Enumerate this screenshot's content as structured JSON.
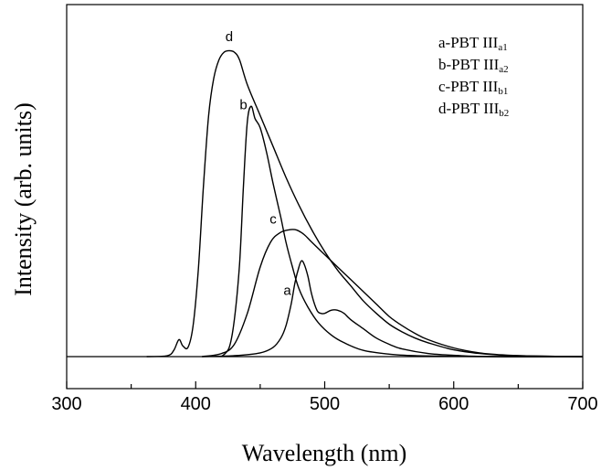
{
  "chart_data": {
    "type": "line",
    "xlabel": "Wavelength (nm)",
    "ylabel": "Intensity (arb. units)",
    "xlim": [
      300,
      700
    ],
    "ylim": [
      -0.1,
      1.05
    ],
    "x_ticks": [
      300,
      400,
      500,
      600,
      700
    ],
    "x_tick_labels": [
      "300",
      "400",
      "500",
      "600",
      "700"
    ],
    "grid": false,
    "legend_placement": "top-right",
    "legend": [
      {
        "prefix": "a-PBT III",
        "sub": "a1"
      },
      {
        "prefix": "b-PBT III",
        "sub": "a2"
      },
      {
        "prefix": "c-PBT III",
        "sub": "b1"
      },
      {
        "prefix": "d-PBT III",
        "sub": "b2"
      }
    ],
    "series": [
      {
        "name": "a",
        "color": "#000000",
        "x": [
          405,
          430,
          450,
          460,
          466,
          470,
          474,
          477,
          480,
          482,
          484,
          487,
          490,
          494,
          497,
          500,
          505,
          510,
          515,
          520,
          530,
          540,
          550,
          560,
          580,
          600,
          620,
          640,
          660,
          700
        ],
        "y": [
          0,
          0.003,
          0.012,
          0.03,
          0.06,
          0.1,
          0.17,
          0.24,
          0.29,
          0.31,
          0.3,
          0.26,
          0.2,
          0.15,
          0.14,
          0.14,
          0.15,
          0.15,
          0.14,
          0.12,
          0.09,
          0.06,
          0.04,
          0.025,
          0.01,
          0.004,
          0.001,
          0,
          0,
          0
        ]
      },
      {
        "name": "b",
        "color": "#000000",
        "x": [
          420,
          426,
          430,
          434,
          437,
          440,
          443,
          446,
          450,
          455,
          460,
          466,
          470,
          475,
          480,
          487,
          495,
          505,
          515,
          530,
          550,
          570,
          600,
          630,
          700
        ],
        "y": [
          0,
          0.03,
          0.12,
          0.3,
          0.55,
          0.76,
          0.81,
          0.77,
          0.74,
          0.66,
          0.56,
          0.45,
          0.37,
          0.29,
          0.22,
          0.16,
          0.11,
          0.07,
          0.045,
          0.02,
          0.008,
          0.003,
          0.001,
          0,
          0
        ]
      },
      {
        "name": "c",
        "color": "#000000",
        "x": [
          405,
          420,
          430,
          440,
          450,
          458,
          465,
          472,
          478,
          484,
          490,
          500,
          510,
          520,
          530,
          540,
          550,
          560,
          570,
          580,
          600,
          620,
          640,
          660,
          700
        ],
        "y": [
          0,
          0.01,
          0.04,
          0.14,
          0.29,
          0.37,
          0.4,
          0.41,
          0.41,
          0.395,
          0.37,
          0.33,
          0.29,
          0.25,
          0.21,
          0.17,
          0.13,
          0.1,
          0.075,
          0.055,
          0.028,
          0.012,
          0.005,
          0.002,
          0
        ]
      },
      {
        "name": "d",
        "color": "#000000",
        "x": [
          362,
          378,
          383,
          387,
          390,
          394,
          398,
          402,
          406,
          410,
          414,
          418,
          422,
          426,
          430,
          434,
          440,
          450,
          460,
          470,
          480,
          490,
          500,
          510,
          520,
          530,
          540,
          550,
          560,
          570,
          580,
          600,
          620,
          640,
          660,
          700
        ],
        "y": [
          0,
          0.003,
          0.02,
          0.055,
          0.035,
          0.03,
          0.1,
          0.28,
          0.55,
          0.78,
          0.9,
          0.96,
          0.985,
          0.99,
          0.985,
          0.96,
          0.88,
          0.78,
          0.68,
          0.58,
          0.49,
          0.41,
          0.34,
          0.28,
          0.23,
          0.18,
          0.14,
          0.105,
          0.08,
          0.06,
          0.045,
          0.022,
          0.01,
          0.004,
          0.002,
          0
        ]
      }
    ],
    "curve_labels": [
      {
        "text": "d",
        "x": 426,
        "y": 1.02
      },
      {
        "text": "b",
        "x": 437,
        "y": 0.8
      },
      {
        "text": "c",
        "x": 460,
        "y": 0.43
      },
      {
        "text": "a",
        "x": 471,
        "y": 0.2
      }
    ]
  }
}
